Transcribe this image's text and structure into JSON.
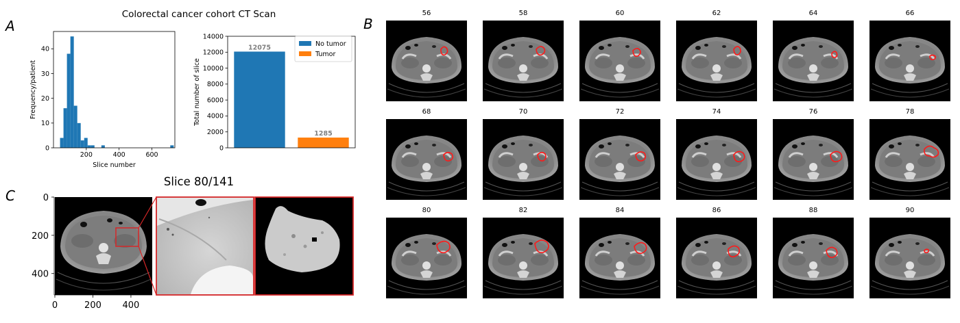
{
  "panel_labels": {
    "a": "A",
    "b": "B",
    "c": "C"
  },
  "suptitle": "Colorectal cancer cohort CT Scan",
  "colors": {
    "primary": "#1f77b4",
    "secondary": "#ff7f0e",
    "contour": "#ff1a1a",
    "frame": "#d62728",
    "scan_bg": "#000000",
    "value_label": "#7f7f7f"
  },
  "chart_data": [
    {
      "type": "bar",
      "subtype": "histogram",
      "bins": [
        {
          "x": 40,
          "y": 4
        },
        {
          "x": 61,
          "y": 16
        },
        {
          "x": 82,
          "y": 38
        },
        {
          "x": 103,
          "y": 45
        },
        {
          "x": 124,
          "y": 17
        },
        {
          "x": 145,
          "y": 10
        },
        {
          "x": 166,
          "y": 3
        },
        {
          "x": 187,
          "y": 4
        },
        {
          "x": 208,
          "y": 1
        },
        {
          "x": 229,
          "y": 1
        },
        {
          "x": 292,
          "y": 1
        },
        {
          "x": 712,
          "y": 1
        }
      ],
      "bin_width": 21,
      "xlabel": "Slice number",
      "ylabel": "Frequency/patient",
      "xlim": [
        0,
        740
      ],
      "ylim": [
        0,
        47
      ],
      "xticks": [
        "200",
        "400",
        "600"
      ],
      "xtick_values": [
        200,
        400,
        600
      ],
      "yticks": [
        "0",
        "10",
        "20",
        "30",
        "40"
      ],
      "ytick_values": [
        0,
        10,
        20,
        30,
        40
      ]
    },
    {
      "type": "bar",
      "categories": [
        "No tumor",
        "Tumor"
      ],
      "values": [
        12075,
        1285
      ],
      "value_labels": [
        "12075",
        "1285"
      ],
      "ylabel": "Total number of slice",
      "ylim": [
        0,
        14000
      ],
      "yticks": [
        "0",
        "2000",
        "4000",
        "6000",
        "8000",
        "10000",
        "12000",
        "14000"
      ],
      "ytick_values": [
        0,
        2000,
        4000,
        6000,
        8000,
        10000,
        12000,
        14000
      ],
      "legend": [
        "No tumor",
        "Tumor"
      ],
      "legend_position": "top-right"
    }
  ],
  "panel_c": {
    "title": "Slice 80/141",
    "xticks": [
      "0",
      "200",
      "400"
    ],
    "yticks": [
      "0",
      "200",
      "400"
    ],
    "xtick_values": [
      0,
      200,
      400
    ],
    "ytick_values": [
      0,
      200,
      400
    ],
    "image_extent": [
      0,
      512
    ],
    "crop_box": {
      "x": [
        320,
        440
      ],
      "y": [
        170,
        280
      ]
    }
  },
  "panel_b": {
    "slice_labels": [
      "56",
      "58",
      "60",
      "62",
      "64",
      "66",
      "68",
      "70",
      "72",
      "74",
      "76",
      "78",
      "80",
      "82",
      "84",
      "86",
      "88",
      "90"
    ]
  }
}
